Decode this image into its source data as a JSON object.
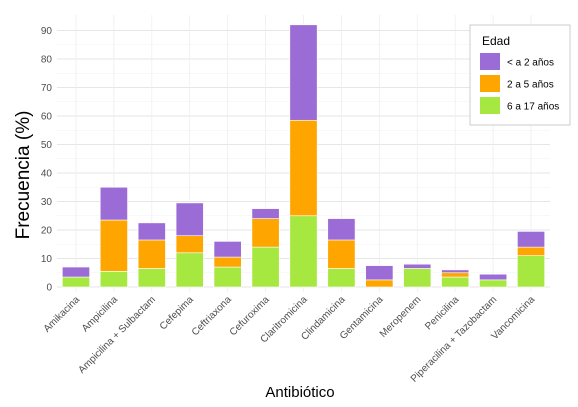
{
  "chart_data": {
    "type": "bar",
    "stacked": true,
    "xlabel": "Antibiótico",
    "ylabel": "Frecuencia (%)",
    "ylim": [
      0,
      93
    ],
    "yticks": [
      0,
      10,
      20,
      30,
      40,
      50,
      60,
      70,
      80,
      90
    ],
    "grid": true,
    "legend": {
      "title": "Edad",
      "placement": "top-right"
    },
    "categories": [
      "Amikacina",
      "Ampicilina",
      "Ampicilina + Sulbactam",
      "Cefepima",
      "Ceftriaxona",
      "Cefuroxima",
      "Claritromicina",
      "Clindamicina",
      "Gentamicina",
      "Meropenem",
      "Penicilina",
      "Piperacilina + Tazobactam",
      "Vancomicina"
    ],
    "series": [
      {
        "name": "6 a 17 años",
        "color": "#a6e83f",
        "values": [
          3.5,
          5.5,
          6.5,
          12,
          7,
          14,
          25,
          6.5,
          0,
          6.5,
          3.5,
          2.5,
          11
        ]
      },
      {
        "name": "2 a 5 años",
        "color": "#ffa500",
        "values": [
          0,
          18,
          10,
          6,
          3.5,
          10,
          33.5,
          10,
          2.5,
          0,
          1.5,
          0,
          3
        ]
      },
      {
        "name": "< a 2 años",
        "color": "#9b6bd6",
        "values": [
          3.5,
          11.5,
          6,
          11.5,
          5.5,
          3.5,
          33.5,
          7.5,
          5,
          1.5,
          1,
          2,
          5.5
        ]
      }
    ]
  }
}
